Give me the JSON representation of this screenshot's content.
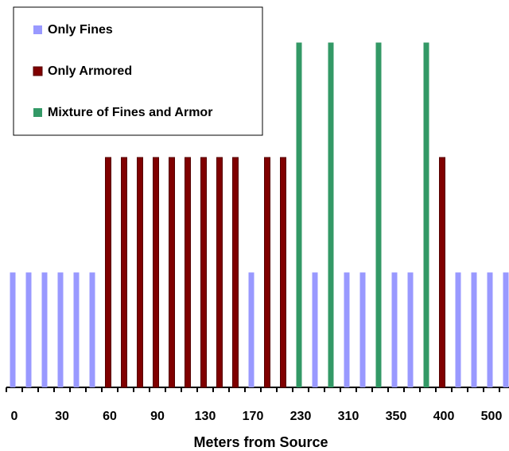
{
  "chart_data": {
    "type": "bar",
    "x_label": "Meters from Source",
    "categories": [
      "0",
      null,
      null,
      "30",
      null,
      null,
      "60",
      null,
      null,
      "90",
      null,
      null,
      "130",
      null,
      null,
      "170",
      null,
      null,
      "230",
      null,
      null,
      "310",
      null,
      null,
      "350",
      null,
      null,
      "400",
      null,
      null,
      "500",
      null
    ],
    "series": [
      {
        "name": "Only Fines",
        "color": "#9999ff",
        "values": [
          1,
          1,
          1,
          1,
          1,
          1,
          null,
          null,
          null,
          null,
          null,
          null,
          null,
          null,
          null,
          1,
          null,
          null,
          null,
          1,
          null,
          1,
          1,
          null,
          1,
          1,
          null,
          null,
          1,
          1,
          1,
          1
        ]
      },
      {
        "name": "Only Armored",
        "color": "#800000",
        "values": [
          null,
          null,
          null,
          null,
          null,
          null,
          2,
          2,
          2,
          2,
          2,
          2,
          2,
          2,
          2,
          null,
          2,
          2,
          null,
          null,
          null,
          null,
          null,
          null,
          null,
          null,
          null,
          2,
          null,
          null,
          null,
          null
        ]
      },
      {
        "name": "Mixture of Fines and Armor",
        "color": "#339966",
        "values": [
          null,
          null,
          null,
          null,
          null,
          null,
          null,
          null,
          null,
          null,
          null,
          null,
          null,
          null,
          null,
          null,
          null,
          null,
          3,
          null,
          3,
          null,
          null,
          3,
          null,
          null,
          3,
          null,
          null,
          null,
          null,
          null
        ]
      }
    ],
    "legend": "top-left"
  }
}
